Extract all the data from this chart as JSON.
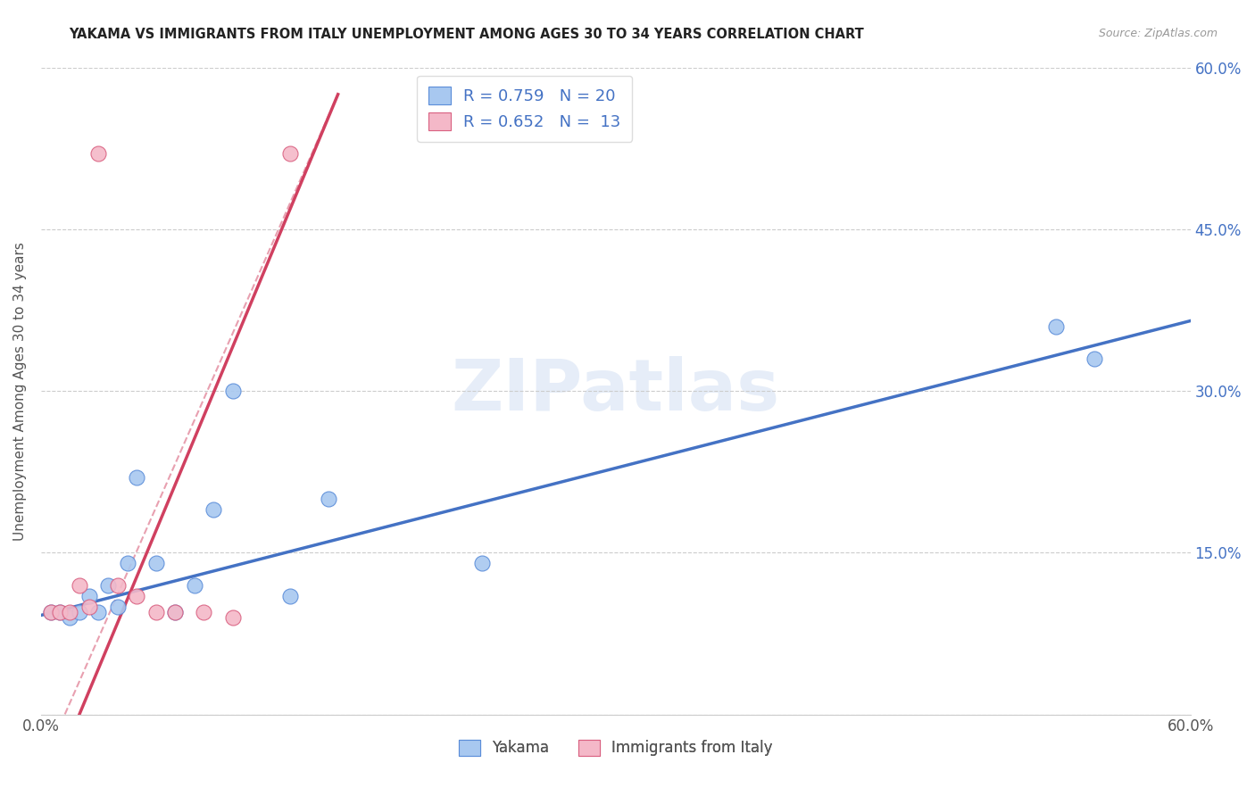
{
  "title": "YAKAMA VS IMMIGRANTS FROM ITALY UNEMPLOYMENT AMONG AGES 30 TO 34 YEARS CORRELATION CHART",
  "source": "Source: ZipAtlas.com",
  "ylabel": "Unemployment Among Ages 30 to 34 years",
  "xlim": [
    0.0,
    0.6
  ],
  "ylim": [
    0.0,
    0.6
  ],
  "watermark": "ZIPatlas",
  "legend_R1": "R = 0.759",
  "legend_N1": "N = 20",
  "legend_R2": "R = 0.652",
  "legend_N2": "N =  13",
  "color_blue": "#A8C8F0",
  "color_pink": "#F4B8C8",
  "color_blue_dark": "#5B8DD9",
  "color_pink_dark": "#D96080",
  "line_blue": "#4472C4",
  "line_pink": "#D04060",
  "line_dashed_color": "#E8A0B0",
  "blue_points_x": [
    0.005,
    0.01,
    0.015,
    0.02,
    0.025,
    0.03,
    0.035,
    0.04,
    0.045,
    0.05,
    0.06,
    0.07,
    0.08,
    0.09,
    0.1,
    0.13,
    0.15,
    0.23,
    0.53,
    0.55
  ],
  "blue_points_y": [
    0.095,
    0.095,
    0.09,
    0.095,
    0.11,
    0.095,
    0.12,
    0.1,
    0.14,
    0.22,
    0.14,
    0.095,
    0.12,
    0.19,
    0.3,
    0.11,
    0.2,
    0.14,
    0.36,
    0.33
  ],
  "pink_points_x": [
    0.005,
    0.01,
    0.015,
    0.02,
    0.025,
    0.03,
    0.04,
    0.05,
    0.06,
    0.07,
    0.085,
    0.1,
    0.13
  ],
  "pink_points_y": [
    0.095,
    0.095,
    0.095,
    0.12,
    0.1,
    0.52,
    0.12,
    0.11,
    0.095,
    0.095,
    0.095,
    0.09,
    0.52
  ],
  "blue_line_x": [
    0.0,
    0.6
  ],
  "blue_line_y": [
    0.092,
    0.365
  ],
  "pink_line_x": [
    0.02,
    0.155
  ],
  "pink_line_y": [
    0.0,
    0.575
  ],
  "dashed_line_x": [
    0.0,
    0.155
  ],
  "dashed_line_y": [
    -0.05,
    0.575
  ]
}
